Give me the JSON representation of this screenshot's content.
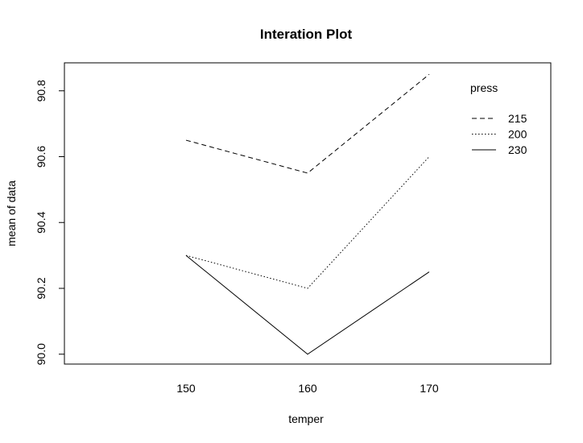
{
  "chart_data": {
    "type": "line",
    "title": "Interation Plot",
    "xlabel": "temper",
    "ylabel": "mean of  data",
    "categories": [
      "150",
      "160",
      "170"
    ],
    "xlim": [
      140,
      180
    ],
    "ylim": [
      89.97,
      90.885
    ],
    "yticks": [
      "90.0",
      "90.2",
      "90.4",
      "90.6",
      "90.8"
    ],
    "ytick_values": [
      90.0,
      90.2,
      90.4,
      90.6,
      90.8
    ],
    "legend_title": "press",
    "legend_placement": "top-right",
    "grid": false,
    "series": [
      {
        "name": "215",
        "values": [
          90.65,
          90.55,
          90.85
        ],
        "style": "dashed"
      },
      {
        "name": "200",
        "values": [
          90.3,
          90.2,
          90.6
        ],
        "style": "dotted"
      },
      {
        "name": "230",
        "values": [
          90.3,
          90.0,
          90.25
        ],
        "style": "solid"
      }
    ],
    "line_color": "#000000"
  }
}
